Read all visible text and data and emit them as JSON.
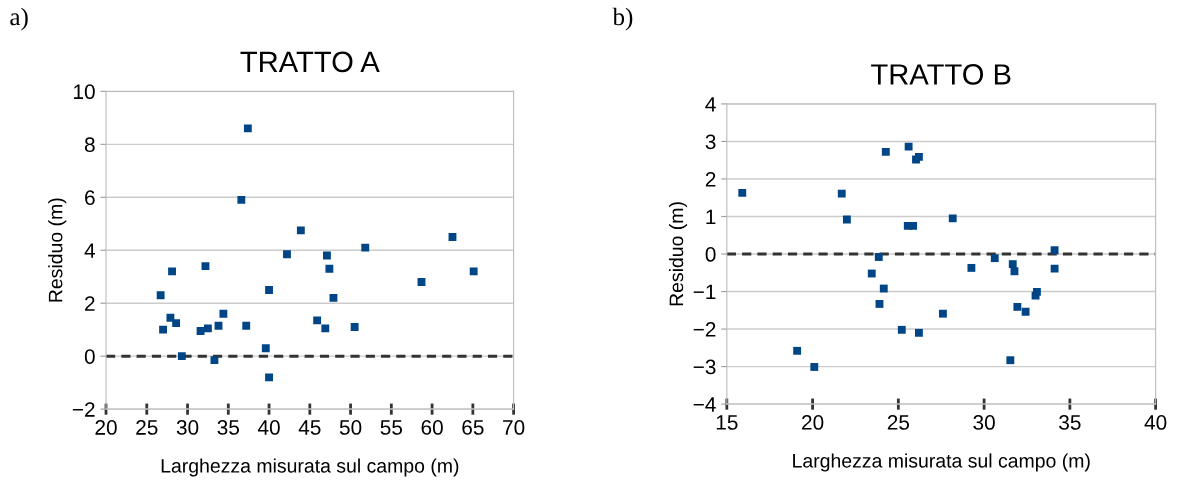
{
  "chart_data": [
    {
      "type": "scatter",
      "title": "TRATTO A",
      "xlabel": "Larghezza misurata sul campo (m)",
      "ylabel": "Residuo (m)",
      "annotations": [
        "a)"
      ],
      "x": [
        26.7,
        27.0,
        27.9,
        28.1,
        28.6,
        29.3,
        31.6,
        32.2,
        32.5,
        33.3,
        33.8,
        34.4,
        36.6,
        37.2,
        37.4,
        39.6,
        40.0,
        40.0,
        42.2,
        43.9,
        45.9,
        46.9,
        47.1,
        47.4,
        47.9,
        50.5,
        51.8,
        58.7,
        62.5,
        65.1
      ],
      "values": [
        2.3,
        1.0,
        1.45,
        3.2,
        1.25,
        0.0,
        0.95,
        3.4,
        1.05,
        -0.15,
        1.15,
        1.6,
        5.9,
        1.15,
        8.6,
        0.3,
        -0.8,
        2.5,
        3.85,
        4.75,
        1.35,
        1.05,
        3.8,
        3.3,
        2.2,
        1.1,
        4.1,
        2.8,
        4.5,
        3.2
      ],
      "color": "#004586",
      "marker": "square",
      "grid": "y",
      "xlim": [
        20,
        70
      ],
      "xticks": [
        20,
        25,
        30,
        35,
        40,
        45,
        50,
        55,
        60,
        65,
        70
      ],
      "ylim": [
        -2,
        10
      ],
      "yticks": [
        -2,
        0,
        2,
        4,
        6,
        8,
        10
      ],
      "ref_lines": [
        {
          "axis": "y",
          "value": 0,
          "color": "#333333",
          "line_style": "dashed"
        }
      ]
    },
    {
      "type": "scatter",
      "title": "TRATTO B",
      "xlabel": "Larghezza misurata sul campo (m)",
      "ylabel": "Residuo (m)",
      "annotations": [
        "b)"
      ],
      "x": [
        15.9,
        19.1,
        20.1,
        21.7,
        22.0,
        23.45,
        23.86,
        24.15,
        23.9,
        24.27,
        25.2,
        25.6,
        25.55,
        25.86,
        26.03,
        26.2,
        26.2,
        27.6,
        28.17,
        29.26,
        30.62,
        31.53,
        31.67,
        31.77,
        31.94,
        32.42,
        33.0,
        33.08,
        34.11,
        34.11
      ],
      "values": [
        1.63,
        -2.58,
        -3.01,
        1.61,
        0.92,
        -0.52,
        -0.08,
        -0.92,
        -1.33,
        2.72,
        -2.02,
        2.86,
        0.75,
        0.75,
        2.52,
        2.59,
        -2.1,
        -1.59,
        0.95,
        -0.37,
        -0.11,
        -2.83,
        -0.27,
        -0.46,
        -1.41,
        -1.54,
        -1.11,
        -1.01,
        0.1,
        -0.39
      ],
      "color": "#004586",
      "marker": "square",
      "grid": "y",
      "xlim": [
        15,
        40
      ],
      "xticks": [
        15,
        20,
        25,
        30,
        35,
        40
      ],
      "ylim": [
        -4,
        4
      ],
      "yticks": [
        -4,
        -3,
        -2,
        -1,
        0,
        1,
        2,
        3,
        4
      ],
      "ref_lines": [
        {
          "axis": "y",
          "value": 0,
          "color": "#333333",
          "line_style": "dashed"
        }
      ]
    }
  ]
}
